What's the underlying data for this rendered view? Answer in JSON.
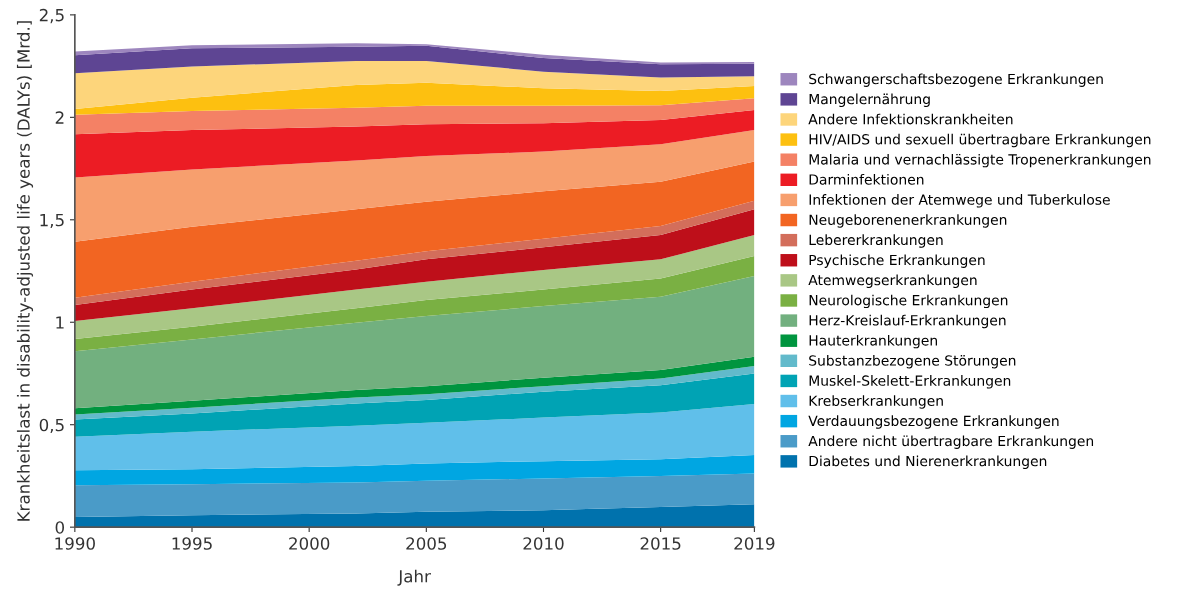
{
  "chart_data": {
    "type": "area",
    "stacked": true,
    "xlabel": "Jahr",
    "ylabel": "Krankheitslast in disability-adjusted life years (DALYs) [Mrd.]",
    "x": [
      1990,
      1995,
      2002,
      2005,
      2010,
      2015,
      2019
    ],
    "xlim": [
      1990,
      2019
    ],
    "xticks": [
      1990,
      1995,
      2000,
      2005,
      2010,
      2015,
      2019
    ],
    "ylim": [
      0,
      2.5
    ],
    "yticks": [
      0,
      {
        "value": 0.5,
        "label": "0,5"
      },
      1,
      {
        "value": 1.5,
        "label": "1,5"
      },
      2,
      {
        "value": 2.5,
        "label": "2,5"
      }
    ],
    "grid": false,
    "legend": "right",
    "series": [
      {
        "name": "Diabetes und Nierenerkrankungen",
        "color": "#0072ad",
        "values": [
          0.05,
          0.058,
          0.067,
          0.075,
          0.083,
          0.099,
          0.112
        ]
      },
      {
        "name": "Andere nicht übertragbare Erkrankungen",
        "color": "#4a9bc8",
        "values": [
          0.155,
          0.152,
          0.151,
          0.151,
          0.155,
          0.151,
          0.15
        ]
      },
      {
        "name": "Verdauungsbezogene Erkrankungen",
        "color": "#00a6e2",
        "values": [
          0.073,
          0.073,
          0.081,
          0.085,
          0.084,
          0.082,
          0.09
        ]
      },
      {
        "name": "Krebserkrankungen",
        "color": "#60bfea",
        "values": [
          0.163,
          0.183,
          0.196,
          0.198,
          0.213,
          0.228,
          0.249
        ]
      },
      {
        "name": "Muskel-Skelett-Erkrankungen",
        "color": "#00a3b4",
        "values": [
          0.085,
          0.089,
          0.109,
          0.111,
          0.126,
          0.133,
          0.149
        ]
      },
      {
        "name": "Substanzbezogene Störungen",
        "color": "#62bacb",
        "values": [
          0.024,
          0.028,
          0.029,
          0.029,
          0.027,
          0.033,
          0.036
        ]
      },
      {
        "name": "Hauterkrankungen",
        "color": "#00953f",
        "values": [
          0.03,
          0.034,
          0.036,
          0.039,
          0.041,
          0.041,
          0.046
        ]
      },
      {
        "name": "Herz-Kreislauf-Erkrankungen",
        "color": "#72b07f",
        "values": [
          0.279,
          0.299,
          0.329,
          0.342,
          0.35,
          0.358,
          0.394
        ]
      },
      {
        "name": "Neurologische Erkrankungen",
        "color": "#7ab043",
        "values": [
          0.059,
          0.062,
          0.07,
          0.078,
          0.081,
          0.089,
          0.097
        ]
      },
      {
        "name": "Atemwegserkrankungen",
        "color": "#a9c785",
        "values": [
          0.088,
          0.09,
          0.092,
          0.09,
          0.095,
          0.093,
          0.103
        ]
      },
      {
        "name": "Psychische Erkrankungen",
        "color": "#be0f1a",
        "values": [
          0.078,
          0.092,
          0.098,
          0.109,
          0.111,
          0.119,
          0.125
        ]
      },
      {
        "name": "Lebererkrankungen",
        "color": "#d36e5b",
        "values": [
          0.036,
          0.038,
          0.042,
          0.039,
          0.042,
          0.044,
          0.042
        ]
      },
      {
        "name": "Neugeborenenerkrankungen",
        "color": "#f26522",
        "values": [
          0.273,
          0.268,
          0.251,
          0.242,
          0.231,
          0.216,
          0.191
        ]
      },
      {
        "name": "Infektionen der Atemwege und Tuberkulose",
        "color": "#f79f6e",
        "values": [
          0.313,
          0.28,
          0.238,
          0.223,
          0.194,
          0.183,
          0.154
        ]
      },
      {
        "name": "Darminfektionen",
        "color": "#ec1c24",
        "values": [
          0.211,
          0.192,
          0.166,
          0.155,
          0.138,
          0.118,
          0.098
        ]
      },
      {
        "name": "Malaria und vernachlässigte Tropenerkrankungen",
        "color": "#f48165",
        "values": [
          0.095,
          0.093,
          0.092,
          0.09,
          0.085,
          0.072,
          0.057
        ]
      },
      {
        "name": "HIV/AIDS und sexuell übertragbare Erkrankungen",
        "color": "#fdc010",
        "values": [
          0.029,
          0.065,
          0.111,
          0.113,
          0.086,
          0.07,
          0.06
        ]
      },
      {
        "name": "Andere Infektionskrankheiten",
        "color": "#fdd57b",
        "values": [
          0.174,
          0.152,
          0.117,
          0.106,
          0.081,
          0.065,
          0.048
        ]
      },
      {
        "name": "Mangelernährung",
        "color": "#5e4593",
        "values": [
          0.088,
          0.089,
          0.07,
          0.074,
          0.066,
          0.065,
          0.061
        ]
      },
      {
        "name": "Schwangerschaftsbezogene Erkrankungen",
        "color": "#9d86be",
        "values": [
          0.018,
          0.015,
          0.017,
          0.008,
          0.016,
          0.008,
          0.008
        ]
      }
    ]
  }
}
